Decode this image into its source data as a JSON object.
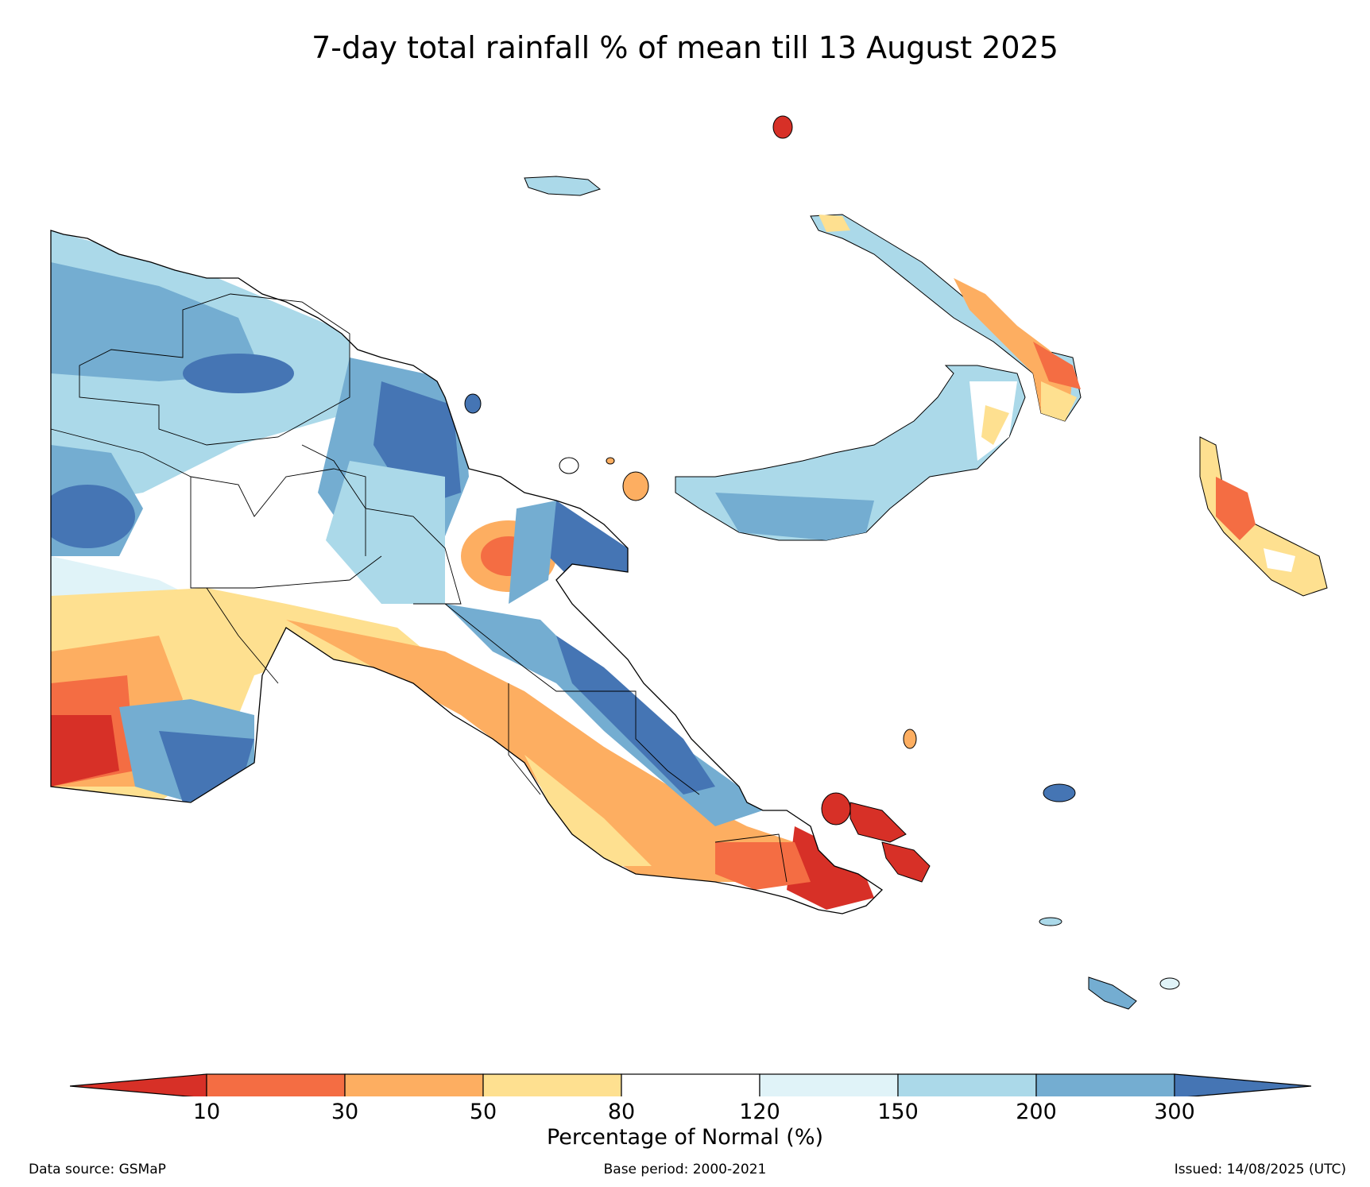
{
  "title": "7-day total rainfall % of mean till 13 August 2025",
  "colorbar": {
    "title": "Percentage of Normal (%)",
    "ticks": [
      "10",
      "30",
      "50",
      "80",
      "120",
      "150",
      "200",
      "300"
    ],
    "colors": {
      "below_10": "#d73027",
      "10_30": "#f46d43",
      "30_50": "#fdae61",
      "50_80": "#fee090",
      "80_120": "#ffffff",
      "120_150": "#e0f3f8",
      "150_200": "#abd9e9",
      "200_300": "#74add1",
      "above_300": "#4575b4"
    }
  },
  "footer": {
    "source": "Data source: GSMaP",
    "base_period": "Base period: 2000-2021",
    "issued": "Issued: 14/08/2025 (UTC)"
  }
}
